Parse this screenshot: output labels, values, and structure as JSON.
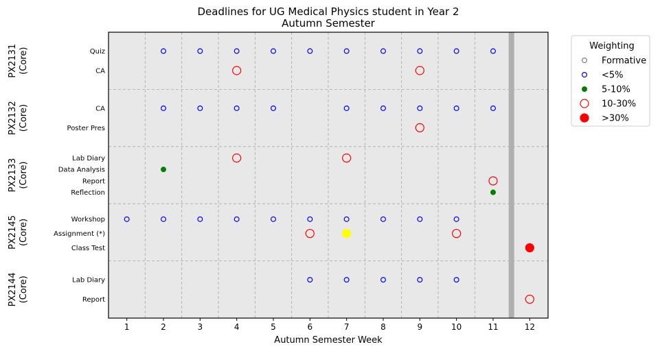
{
  "chart_data": {
    "type": "scatter",
    "title": [
      "Deadlines for UG Medical Physics student in Year 2",
      "Autumn Semester"
    ],
    "xlabel": "Autumn Semester Week",
    "x_ticks": [
      1,
      2,
      3,
      4,
      5,
      6,
      7,
      8,
      9,
      10,
      11,
      12
    ],
    "xlim": [
      0.5,
      12.5
    ],
    "semester_break_week": 11.5,
    "grid": true,
    "legend": {
      "title": "Weighting",
      "placement": "outside-right",
      "entries": [
        {
          "label": "Formative",
          "style": "formative"
        },
        {
          "label": "<5%",
          "style": "lt5"
        },
        {
          "label": "5-10%",
          "style": "w5to10"
        },
        {
          "label": "10-30%",
          "style": "w10to30"
        },
        {
          "label": ">30%",
          "style": "gt30"
        }
      ]
    },
    "styles": {
      "formative": {
        "fill": "none",
        "stroke": "#808080",
        "size": "small"
      },
      "lt5": {
        "fill": "none",
        "stroke": "#0000ff",
        "size": "small"
      },
      "w5to10": {
        "fill": "#008000",
        "stroke": "#008000",
        "size": "small"
      },
      "w10to30": {
        "fill": "none",
        "stroke": "#ff0000",
        "size": "large"
      },
      "gt30": {
        "fill": "#ff0000",
        "stroke": "#ff0000",
        "size": "large"
      },
      "highlight": {
        "fill": "#ffff00",
        "stroke": "#ffff00",
        "size": "large"
      }
    },
    "modules": [
      {
        "name": "PX2131",
        "type": "(Core)",
        "assessments": [
          {
            "label": "Quiz",
            "points": [
              {
                "week": 2,
                "style": "lt5"
              },
              {
                "week": 3,
                "style": "lt5"
              },
              {
                "week": 4,
                "style": "lt5"
              },
              {
                "week": 5,
                "style": "lt5"
              },
              {
                "week": 6,
                "style": "lt5"
              },
              {
                "week": 7,
                "style": "lt5"
              },
              {
                "week": 8,
                "style": "lt5"
              },
              {
                "week": 9,
                "style": "lt5"
              },
              {
                "week": 10,
                "style": "lt5"
              },
              {
                "week": 11,
                "style": "lt5"
              }
            ]
          },
          {
            "label": "CA",
            "points": [
              {
                "week": 4,
                "style": "w10to30"
              },
              {
                "week": 9,
                "style": "w10to30"
              }
            ]
          }
        ]
      },
      {
        "name": "PX2132",
        "type": "(Core)",
        "assessments": [
          {
            "label": "CA",
            "points": [
              {
                "week": 2,
                "style": "lt5"
              },
              {
                "week": 3,
                "style": "lt5"
              },
              {
                "week": 4,
                "style": "lt5"
              },
              {
                "week": 5,
                "style": "lt5"
              },
              {
                "week": 7,
                "style": "lt5"
              },
              {
                "week": 8,
                "style": "lt5"
              },
              {
                "week": 9,
                "style": "lt5"
              },
              {
                "week": 10,
                "style": "lt5"
              },
              {
                "week": 11,
                "style": "lt5"
              }
            ]
          },
          {
            "label": "Poster Pres",
            "points": [
              {
                "week": 9,
                "style": "w10to30"
              }
            ]
          }
        ]
      },
      {
        "name": "PX2133",
        "type": "(Core)",
        "assessments": [
          {
            "label": "Lab Diary",
            "points": [
              {
                "week": 4,
                "style": "w10to30"
              },
              {
                "week": 7,
                "style": "w10to30"
              }
            ]
          },
          {
            "label": "Data Analysis",
            "points": [
              {
                "week": 2,
                "style": "w5to10"
              }
            ]
          },
          {
            "label": "Report",
            "points": [
              {
                "week": 11,
                "style": "w10to30"
              }
            ]
          },
          {
            "label": "Reflection",
            "points": [
              {
                "week": 11,
                "style": "w5to10"
              }
            ]
          }
        ]
      },
      {
        "name": "PX2145",
        "type": "(Core)",
        "assessments": [
          {
            "label": "Workshop",
            "points": [
              {
                "week": 1,
                "style": "lt5"
              },
              {
                "week": 2,
                "style": "lt5"
              },
              {
                "week": 3,
                "style": "lt5"
              },
              {
                "week": 4,
                "style": "lt5"
              },
              {
                "week": 5,
                "style": "lt5"
              },
              {
                "week": 6,
                "style": "lt5"
              },
              {
                "week": 7,
                "style": "lt5"
              },
              {
                "week": 8,
                "style": "lt5"
              },
              {
                "week": 9,
                "style": "lt5"
              },
              {
                "week": 10,
                "style": "lt5"
              }
            ]
          },
          {
            "label": "Assignment (*)",
            "points": [
              {
                "week": 6,
                "style": "w10to30"
              },
              {
                "week": 7,
                "style": "highlight"
              },
              {
                "week": 10,
                "style": "w10to30"
              }
            ]
          },
          {
            "label": "Class Test",
            "points": [
              {
                "week": 12,
                "style": "gt30"
              }
            ]
          }
        ]
      },
      {
        "name": "PX2144",
        "type": "(Core)",
        "assessments": [
          {
            "label": "Lab Diary",
            "points": [
              {
                "week": 6,
                "style": "lt5"
              },
              {
                "week": 7,
                "style": "lt5"
              },
              {
                "week": 8,
                "style": "lt5"
              },
              {
                "week": 9,
                "style": "lt5"
              },
              {
                "week": 10,
                "style": "lt5"
              }
            ]
          },
          {
            "label": "Report",
            "points": [
              {
                "week": 12,
                "style": "w10to30"
              }
            ]
          }
        ]
      }
    ]
  }
}
